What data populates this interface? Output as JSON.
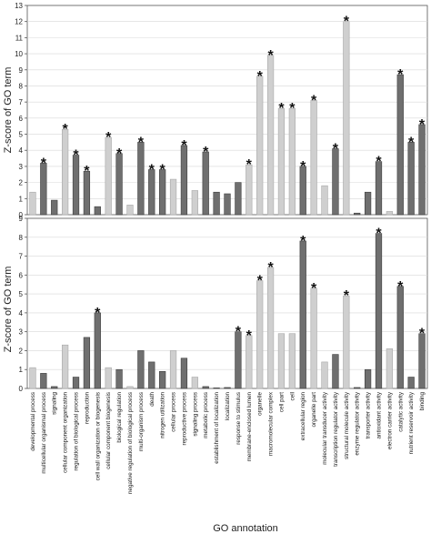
{
  "chart_data": {
    "type": "bar",
    "xlabel": "GO annotation",
    "categories": [
      "developmental process",
      "multicellular organismal process",
      "signaling",
      "cellular component organization",
      "regulation of biological process",
      "reproduction",
      "cell wall organization or biogenesis",
      "cellular component biogenesis",
      "biological regulation",
      "negative regulation of biological process",
      "multi-organism process",
      "death",
      "nitrogen utilization",
      "cellular process",
      "reproductive process",
      "signaling process",
      "metabolic process",
      "establishment of localization",
      "localization",
      "response to stimulus",
      "membrane-enclosed lumen",
      "organelle",
      "macromolecular complex",
      "cell part",
      "cell",
      "extracellular region",
      "organelle part",
      "molecular transducer activity",
      "transcription regulator activity",
      "structural molecule activity",
      "enzyme regulator activity",
      "transporter activity",
      "antioxidant activity",
      "electron carrier activity",
      "catalytic activity",
      "nutrient reservoir activity",
      "binding"
    ],
    "bar_shade": [
      "light",
      "dark",
      "dark",
      "light",
      "dark",
      "dark",
      "dark",
      "light",
      "dark",
      "light",
      "dark",
      "dark",
      "dark",
      "light",
      "dark",
      "light",
      "dark",
      "dark",
      "dark",
      "dark",
      "light",
      "light",
      "light",
      "light",
      "light",
      "dark",
      "light",
      "light",
      "dark",
      "light",
      "dark",
      "dark",
      "dark",
      "light",
      "dark",
      "dark",
      "dark"
    ],
    "colors": {
      "light": "#cfcfcf",
      "dark": "#6f6f6f",
      "light_edge": "#a8a8a8",
      "dark_edge": "#3d3d3d"
    },
    "panels": [
      {
        "ylabel": "Z-score of GO term",
        "ylim": [
          0,
          13
        ],
        "yticks": [
          0,
          1,
          2,
          3,
          4,
          5,
          6,
          7,
          8,
          9,
          10,
          11,
          12,
          13
        ],
        "values": [
          1.4,
          3.2,
          0.9,
          5.3,
          3.7,
          2.7,
          0.5,
          4.8,
          3.8,
          0.6,
          4.5,
          2.8,
          2.8,
          2.2,
          4.3,
          1.5,
          3.9,
          1.4,
          1.3,
          2.0,
          3.1,
          8.6,
          9.9,
          6.6,
          6.6,
          3.0,
          7.1,
          1.8,
          4.1,
          12.0,
          0.1,
          1.4,
          3.3,
          0.2,
          8.7,
          4.5,
          5.6
        ],
        "significant": [
          false,
          true,
          false,
          true,
          true,
          true,
          false,
          true,
          true,
          false,
          true,
          true,
          true,
          false,
          true,
          false,
          true,
          false,
          false,
          false,
          true,
          true,
          true,
          true,
          true,
          true,
          true,
          false,
          true,
          true,
          false,
          false,
          true,
          false,
          true,
          true,
          true
        ]
      },
      {
        "ylabel": "Z-score of GO term",
        "ylim": [
          0,
          9
        ],
        "yticks": [
          0,
          1,
          2,
          3,
          4,
          5,
          6,
          7,
          8,
          9
        ],
        "values": [
          1.1,
          0.8,
          0.1,
          2.3,
          0.6,
          2.7,
          4.0,
          1.1,
          1.0,
          0.1,
          2.0,
          1.4,
          0.9,
          2.0,
          1.6,
          0.6,
          0.1,
          0.02,
          0.05,
          3.0,
          2.8,
          5.7,
          6.4,
          2.9,
          2.9,
          7.8,
          5.3,
          1.4,
          1.8,
          4.9,
          0.05,
          1.0,
          8.2,
          2.1,
          5.4,
          0.6,
          2.9
        ],
        "significant": [
          false,
          false,
          false,
          false,
          false,
          false,
          true,
          false,
          false,
          false,
          false,
          false,
          false,
          false,
          false,
          false,
          false,
          false,
          false,
          true,
          true,
          true,
          true,
          false,
          false,
          true,
          true,
          false,
          false,
          true,
          false,
          false,
          true,
          false,
          true,
          false,
          true
        ]
      }
    ],
    "star_symbol": "*"
  }
}
